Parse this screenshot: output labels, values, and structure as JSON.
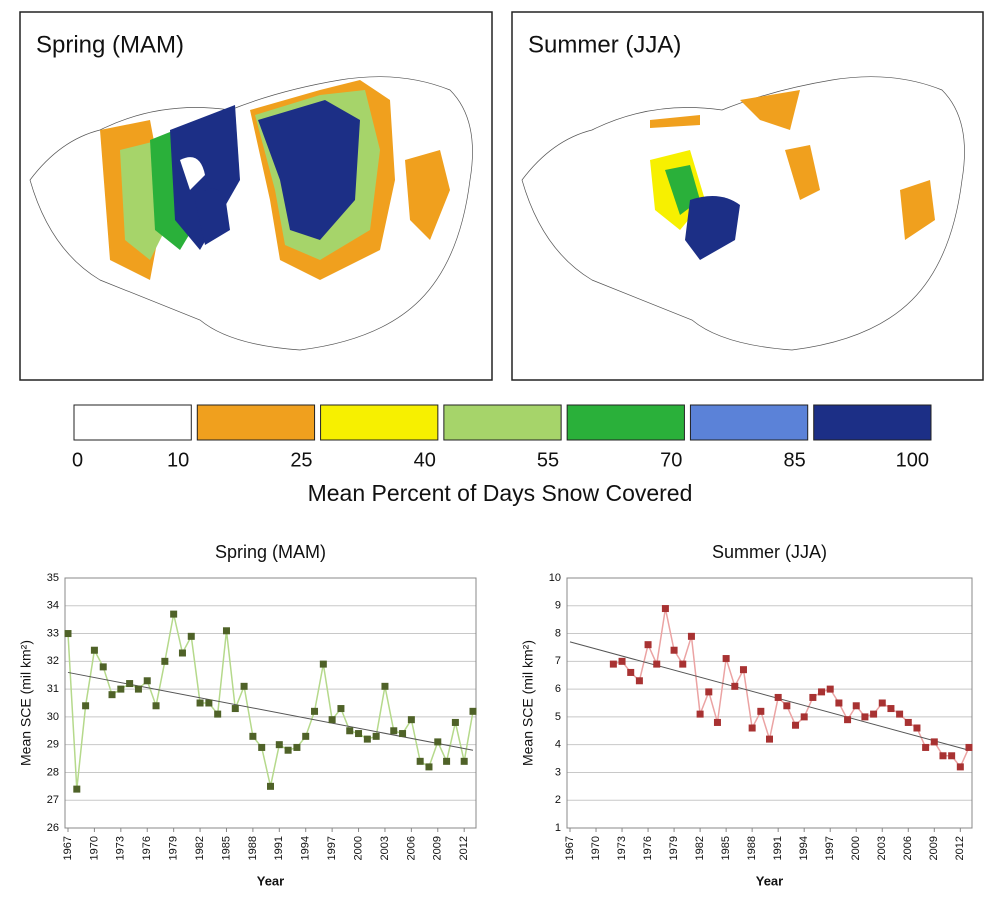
{
  "maps": [
    {
      "title": "Spring (MAM)"
    },
    {
      "title": "Summer (JJA)"
    }
  ],
  "colorbar": {
    "colors": [
      "#ffffff",
      "#f0a01e",
      "#f7f000",
      "#a6d46a",
      "#2ab03a",
      "#5b82d8",
      "#1c2f86"
    ],
    "ticks": [
      0,
      10,
      25,
      40,
      55,
      70,
      85,
      100
    ],
    "label": "Mean Percent of Days Snow Covered"
  },
  "chart_data": [
    {
      "type": "line",
      "title": "Spring (MAM)",
      "x_label": "Year",
      "y_label": "Mean SCE (mil km²)",
      "x": [
        1967,
        1968,
        1969,
        1970,
        1971,
        1972,
        1973,
        1974,
        1975,
        1976,
        1977,
        1978,
        1979,
        1980,
        1981,
        1982,
        1983,
        1984,
        1985,
        1986,
        1987,
        1988,
        1989,
        1990,
        1991,
        1992,
        1993,
        1994,
        1995,
        1996,
        1997,
        1998,
        1999,
        2000,
        2001,
        2002,
        2003,
        2004,
        2005,
        2006,
        2007,
        2008,
        2009,
        2010,
        2011,
        2012,
        2013
      ],
      "series": [
        {
          "color": "#4f6228",
          "line_color": "#b5d98b",
          "values": [
            33.0,
            27.4,
            30.4,
            32.4,
            31.8,
            30.8,
            31.0,
            31.2,
            31.0,
            31.3,
            30.4,
            32.0,
            33.7,
            32.3,
            32.9,
            30.5,
            30.5,
            30.1,
            33.1,
            30.3,
            31.1,
            29.3,
            28.9,
            27.5,
            29.0,
            28.8,
            28.9,
            29.3,
            30.2,
            31.9,
            29.9,
            30.3,
            29.5,
            29.4,
            29.2,
            29.3,
            31.1,
            29.5,
            29.4,
            29.9,
            28.4,
            28.2,
            29.1,
            28.4,
            29.8,
            28.4,
            30.2
          ]
        }
      ],
      "trendline": {
        "start": 31.6,
        "end": 28.8
      },
      "xlim": [
        1967,
        2013
      ],
      "xticks": [
        1967,
        1970,
        1973,
        1976,
        1979,
        1982,
        1985,
        1988,
        1991,
        1994,
        1997,
        2000,
        2003,
        2006,
        2009,
        2012
      ],
      "ylim": [
        26,
        35
      ],
      "yticks": [
        26,
        27,
        28,
        29,
        30,
        31,
        32,
        33,
        34,
        35
      ],
      "grid": true
    },
    {
      "type": "line",
      "title": "Summer (JJA)",
      "x_label": "Year",
      "y_label": "Mean SCE (mil km²)",
      "x": [
        1967,
        1968,
        1969,
        1970,
        1971,
        1972,
        1973,
        1974,
        1975,
        1976,
        1977,
        1978,
        1979,
        1980,
        1981,
        1982,
        1983,
        1984,
        1985,
        1986,
        1987,
        1988,
        1989,
        1990,
        1991,
        1992,
        1993,
        1994,
        1995,
        1996,
        1997,
        1998,
        1999,
        2000,
        2001,
        2002,
        2003,
        2004,
        2005,
        2006,
        2007,
        2008,
        2009,
        2010,
        2011,
        2012,
        2013
      ],
      "series": [
        {
          "color": "#a83232",
          "line_color": "#eba3a3",
          "values": [
            null,
            null,
            null,
            null,
            null,
            6.9,
            7.0,
            6.6,
            6.3,
            7.6,
            6.9,
            8.9,
            7.4,
            6.9,
            7.9,
            5.1,
            5.9,
            4.8,
            7.1,
            6.1,
            6.7,
            4.6,
            5.2,
            4.2,
            5.7,
            5.4,
            4.7,
            5.0,
            5.7,
            5.9,
            6.0,
            5.5,
            4.9,
            5.4,
            5.0,
            5.1,
            5.5,
            5.3,
            5.1,
            4.8,
            4.6,
            3.9,
            4.1,
            3.6,
            3.6,
            3.2,
            3.9
          ]
        }
      ],
      "trendline": {
        "start": 7.7,
        "end": 3.8
      },
      "xlim": [
        1967,
        2013
      ],
      "xticks": [
        1967,
        1970,
        1973,
        1976,
        1979,
        1982,
        1985,
        1988,
        1991,
        1994,
        1997,
        2000,
        2003,
        2006,
        2009,
        2012
      ],
      "ylim": [
        1,
        10
      ],
      "yticks": [
        1,
        2,
        3,
        4,
        5,
        6,
        7,
        8,
        9,
        10
      ],
      "grid": true
    }
  ]
}
